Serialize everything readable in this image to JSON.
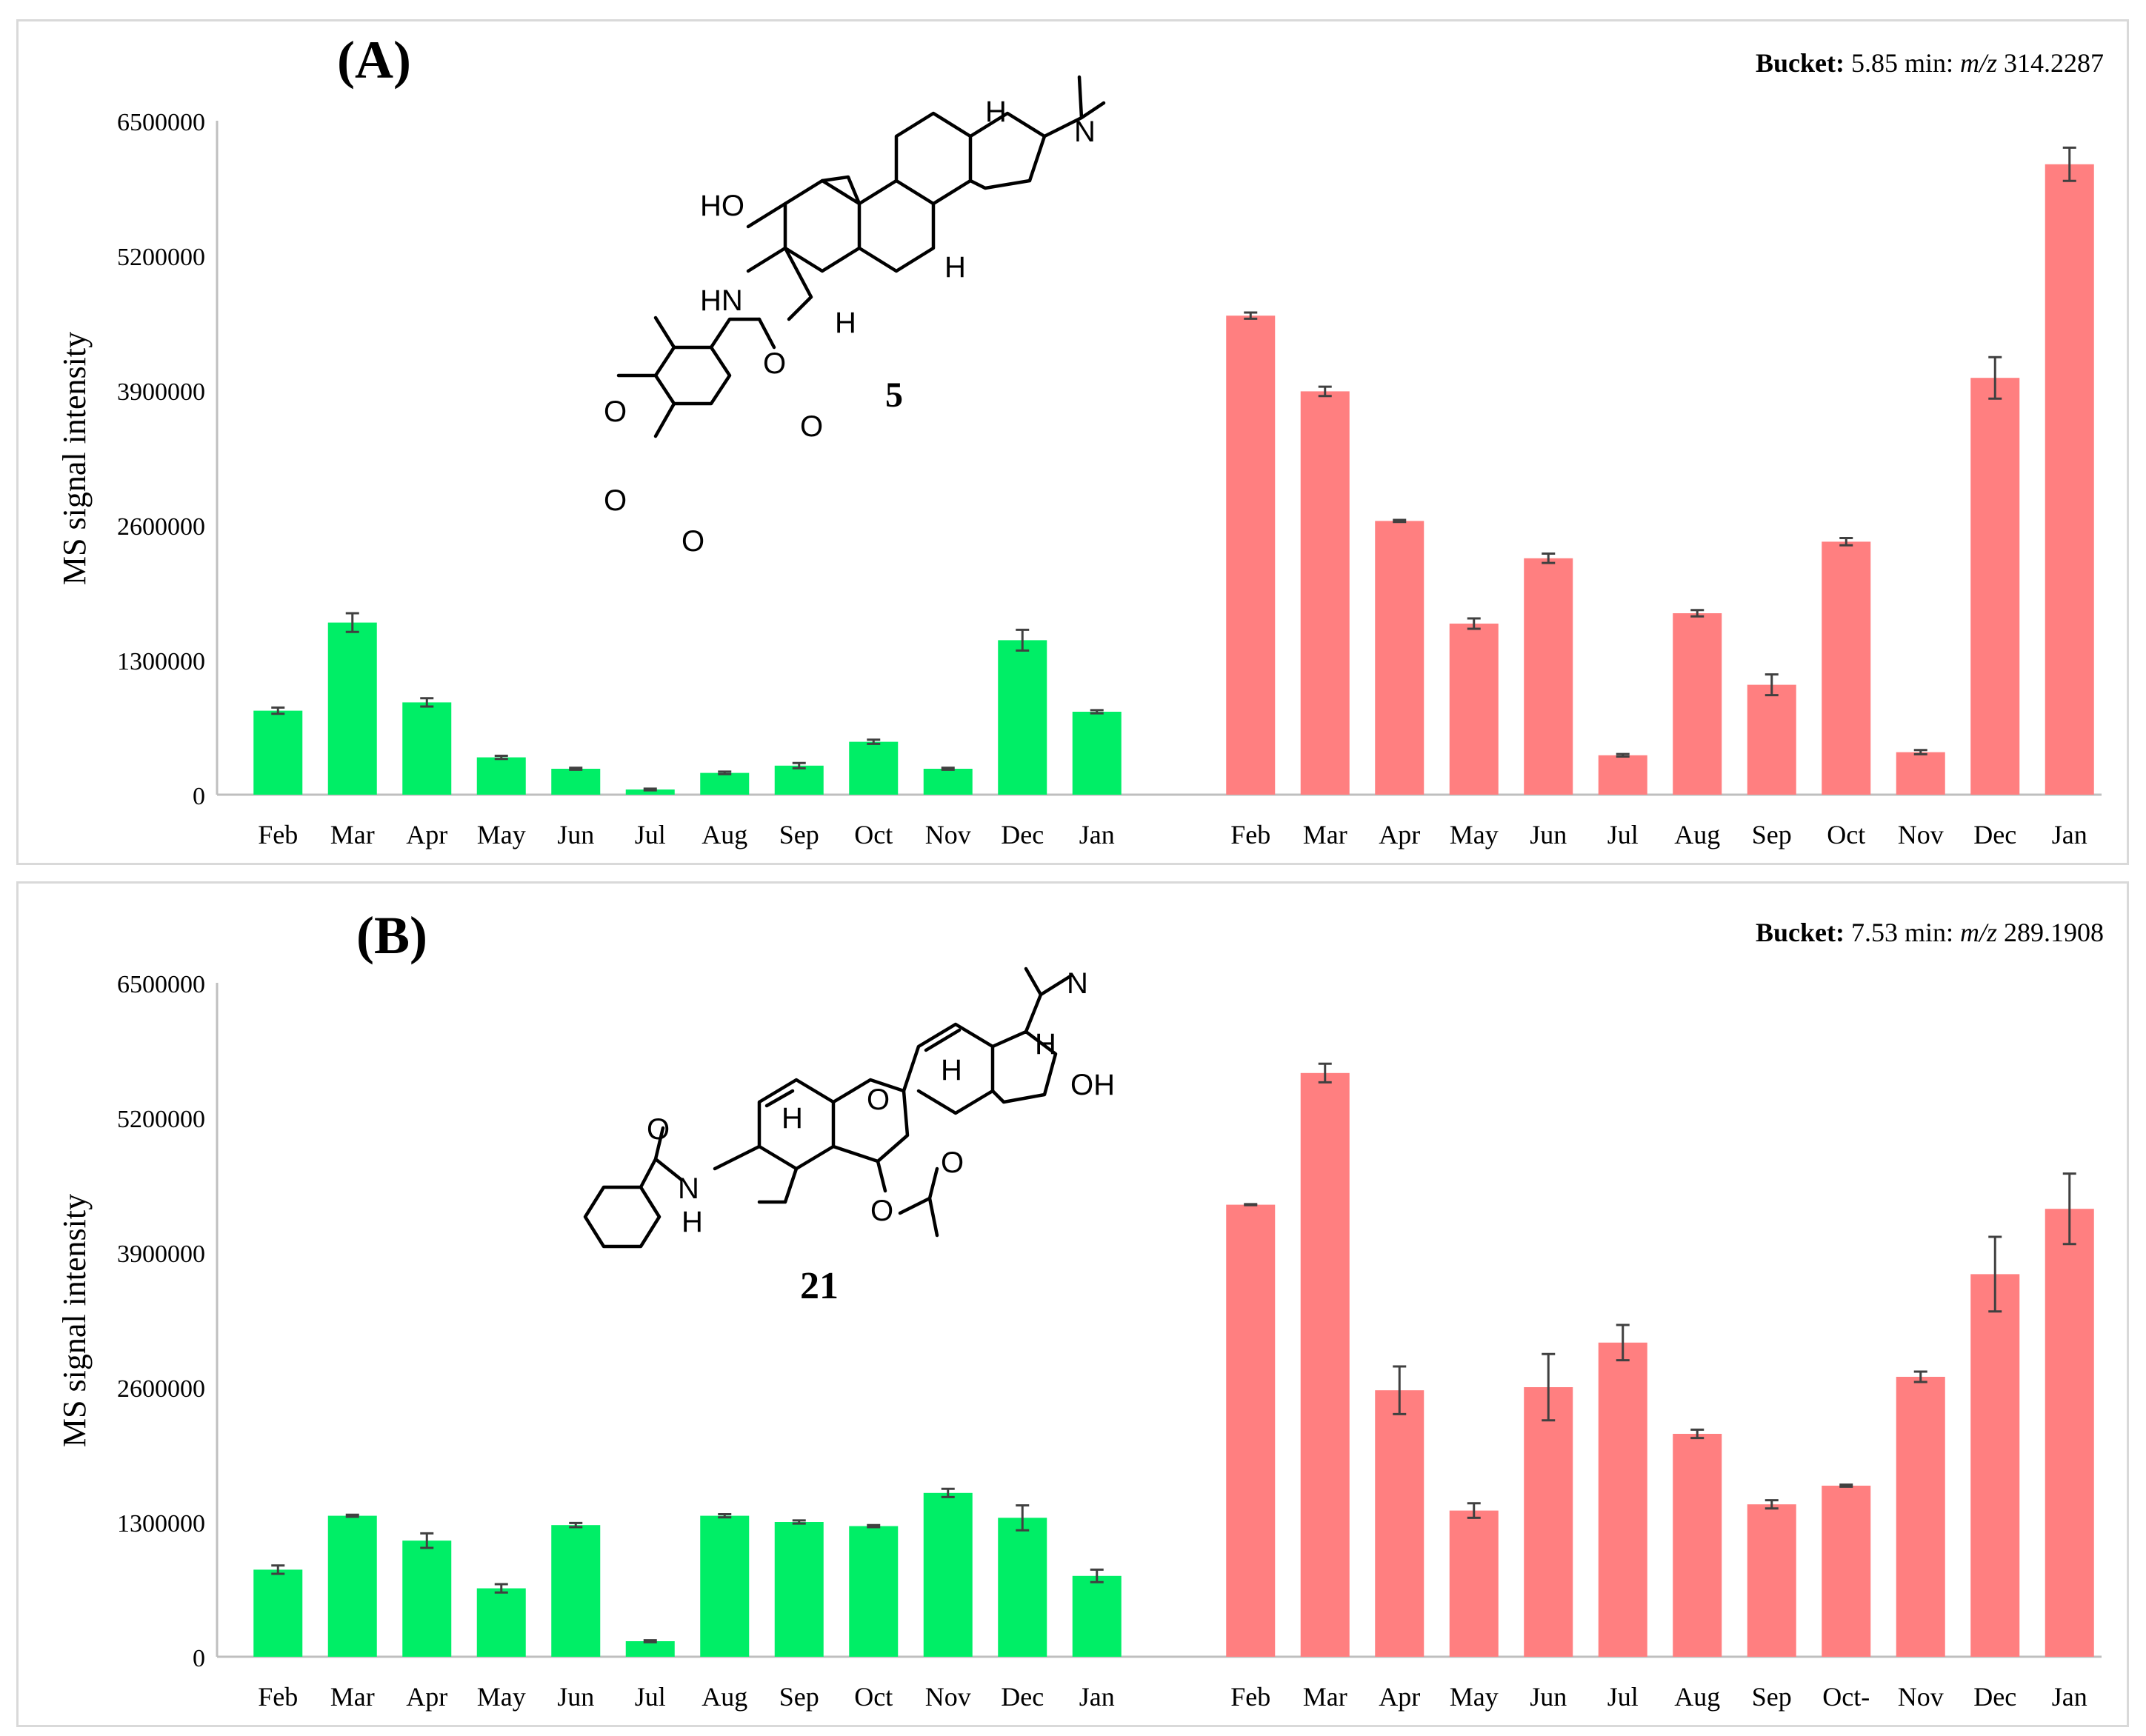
{
  "colors": {
    "series1": "#00ee66",
    "series2": "#ff7f80",
    "axis": "#bfbfbf",
    "error": "#404040"
  },
  "chart_data": [
    {
      "type": "bar",
      "panel_label": "(A)",
      "bucket_label": "Bucket:",
      "bucket_time": "5.85 min:",
      "bucket_mz_label": "m/z",
      "bucket_mz_value": "314.2287",
      "compound_label": "5",
      "ylabel": "MS signal intensity",
      "ylim": [
        0,
        6500000
      ],
      "yticks": [
        "0",
        "1300000",
        "2600000",
        "3900000",
        "5200000",
        "6500000"
      ],
      "series": [
        {
          "categories": [
            "Feb",
            "Mar",
            "Apr",
            "May",
            "Jun",
            "Jul",
            "Aug",
            "Sep",
            "Oct",
            "Nov",
            "Dec",
            "Jan"
          ],
          "values": [
            810000,
            1660000,
            890000,
            360000,
            250000,
            50000,
            210000,
            280000,
            510000,
            250000,
            1490000,
            800000
          ],
          "errors": [
            30000,
            90000,
            40000,
            15000,
            10000,
            8000,
            12000,
            25000,
            20000,
            10000,
            100000,
            15000
          ]
        },
        {
          "categories": [
            "Feb",
            "Mar",
            "Apr",
            "May",
            "Jun",
            "Jul",
            "Aug",
            "Sep",
            "Oct",
            "Nov",
            "Dec",
            "Jan"
          ],
          "values": [
            4620000,
            3890000,
            2640000,
            1650000,
            2280000,
            380000,
            1750000,
            1060000,
            2440000,
            410000,
            4020000,
            6080000
          ],
          "errors": [
            30000,
            45000,
            10000,
            50000,
            45000,
            12000,
            30000,
            100000,
            35000,
            20000,
            200000,
            160000
          ]
        }
      ]
    },
    {
      "type": "bar",
      "panel_label": "(B)",
      "bucket_label": "Bucket:",
      "bucket_time": "7.53 min:",
      "bucket_mz_label": "m/z",
      "bucket_mz_value": "289.1908",
      "compound_label": "21",
      "ylabel": "MS signal intensity",
      "ylim": [
        0,
        6500000
      ],
      "yticks": [
        "0",
        "1300000",
        "2600000",
        "3900000",
        "5200000",
        "6500000"
      ],
      "series": [
        {
          "categories": [
            "Feb",
            "Mar",
            "Apr",
            "May",
            "Jun",
            "Jul",
            "Aug",
            "Sep",
            "Oct",
            "Nov",
            "Dec",
            "Jan"
          ],
          "values": [
            840000,
            1360000,
            1120000,
            660000,
            1270000,
            150000,
            1360000,
            1300000,
            1260000,
            1580000,
            1340000,
            780000
          ],
          "errors": [
            40000,
            10000,
            70000,
            40000,
            20000,
            10000,
            15000,
            15000,
            10000,
            40000,
            120000,
            60000
          ]
        },
        {
          "categories": [
            "Feb",
            "Mar",
            "Apr",
            "May",
            "Jun",
            "Jul",
            "Aug",
            "Sep",
            "Oct-",
            "Nov",
            "Dec",
            "Jan"
          ],
          "values": [
            4360000,
            5630000,
            2570000,
            1410000,
            2600000,
            3030000,
            2150000,
            1470000,
            1650000,
            2700000,
            3690000,
            4320000
          ],
          "errors": [
            5000,
            90000,
            230000,
            70000,
            320000,
            170000,
            40000,
            40000,
            10000,
            50000,
            360000,
            340000
          ]
        }
      ]
    }
  ]
}
